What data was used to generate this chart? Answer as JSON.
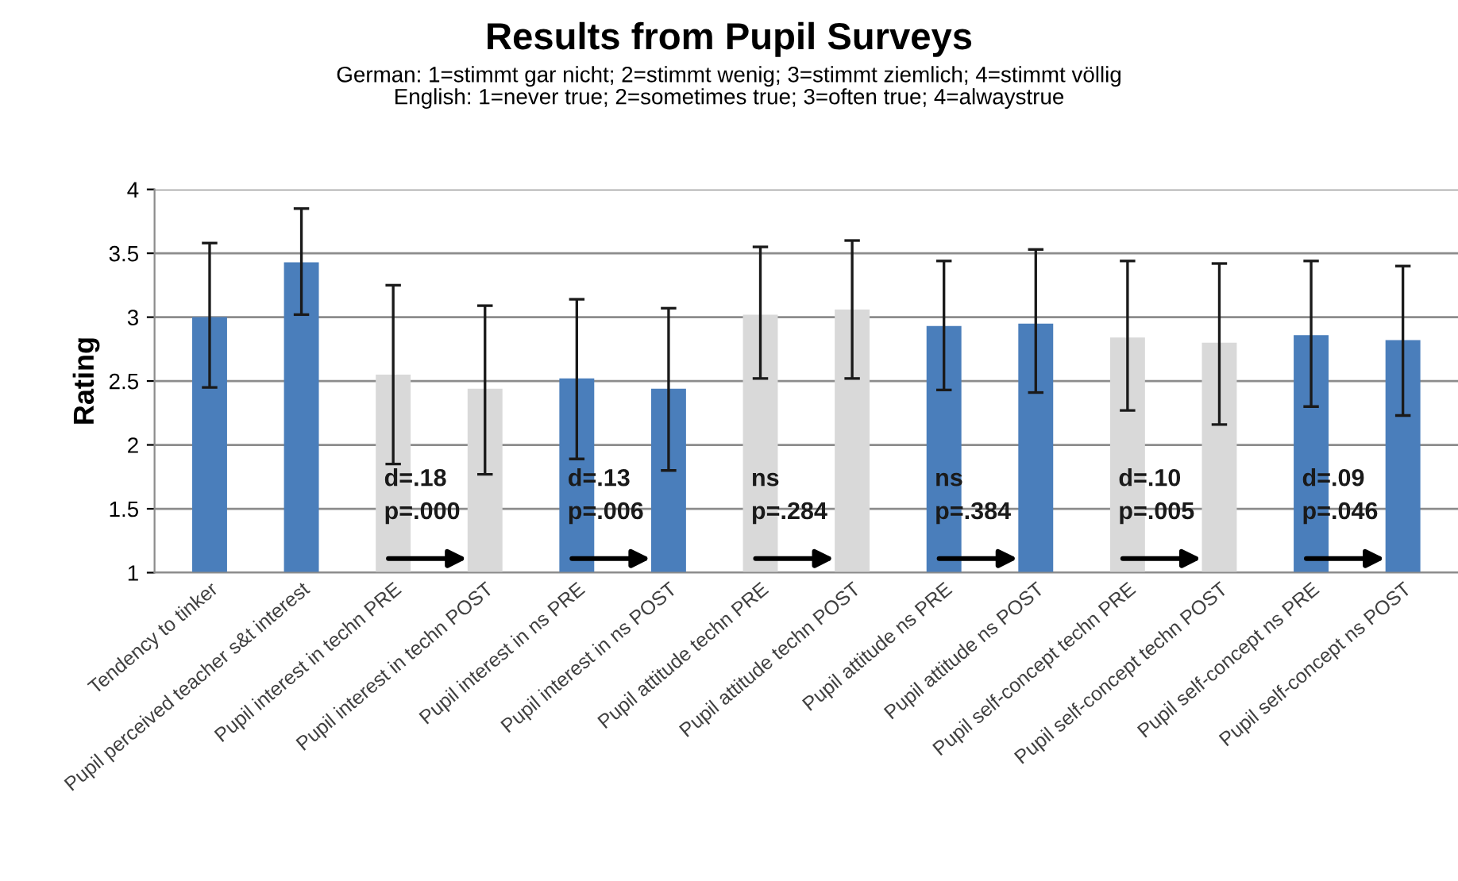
{
  "chart_data": {
    "type": "bar",
    "title": "Results from Pupil Surveys",
    "subtitle": "German: 1=stimmt gar nicht; 2=stimmt wenig; 3=stimmt ziemlich; 4=stimmt völlig\nEnglish: 1=never true; 2=sometimes true; 3=often true; 4=alwaystrue",
    "ylabel": "Rating",
    "categories": [
      "Tendency to tinker",
      "Pupil perceived teacher s&t interest",
      "Pupil interest in techn PRE",
      "Pupil interest in techn POST",
      "Pupil interest in ns PRE",
      "Pupil interest in ns POST",
      "Pupil attitude techn PRE",
      "Pupil attitude techn POST",
      "Pupil attitude ns PRE",
      "Pupil attitude ns POST",
      "Pupil self-concept techn PRE",
      "Pupil self-concept techn POST",
      "Pupil self-concept ns PRE",
      "Pupil self-concept ns POST"
    ],
    "values": [
      3.0,
      3.43,
      2.55,
      2.44,
      2.52,
      2.44,
      3.02,
      3.06,
      2.93,
      2.95,
      2.84,
      2.8,
      2.86,
      2.82
    ],
    "errors": [
      [
        2.45,
        3.58
      ],
      [
        3.02,
        3.85
      ],
      [
        1.85,
        3.25
      ],
      [
        1.77,
        3.09
      ],
      [
        1.89,
        3.14
      ],
      [
        1.8,
        3.07
      ],
      [
        2.52,
        3.55
      ],
      [
        2.52,
        3.6
      ],
      [
        2.43,
        3.44
      ],
      [
        2.41,
        3.53
      ],
      [
        2.27,
        3.44
      ],
      [
        2.16,
        3.42
      ],
      [
        2.3,
        3.44
      ],
      [
        2.23,
        3.4
      ]
    ],
    "colors": [
      "#4a7ebb",
      "#4a7ebb",
      "#d9d9d9",
      "#d9d9d9",
      "#4a7ebb",
      "#4a7ebb",
      "#d9d9d9",
      "#d9d9d9",
      "#4a7ebb",
      "#4a7ebb",
      "#d9d9d9",
      "#d9d9d9",
      "#4a7ebb",
      "#4a7ebb"
    ],
    "ylim": [
      1,
      4
    ],
    "yticks": [
      1,
      1.5,
      2,
      2.5,
      3,
      3.5,
      4
    ],
    "grid": "y",
    "legend": false,
    "annotations": [
      "d=.18\np=.000",
      "d=.13\np=.006",
      "ns\np=.284",
      "ns\np=.384",
      "d=.10\np=.005",
      "d=.09\np=.046"
    ]
  }
}
